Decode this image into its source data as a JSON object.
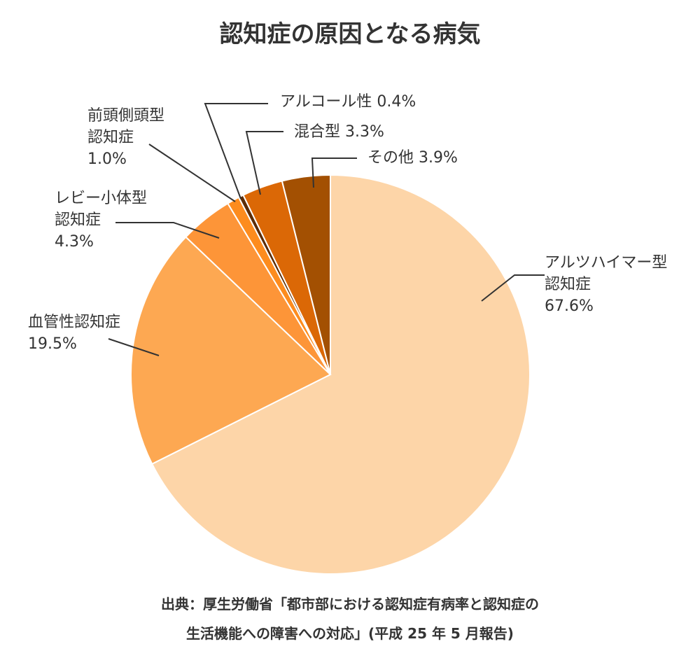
{
  "chart_data": {
    "type": "pie",
    "title": "認知症の原因となる病気",
    "slices": [
      {
        "key": "alz",
        "label_lines": [
          "アルツハイマー型",
          "認知症",
          "67.6%"
        ],
        "value": 67.6,
        "color": "#fdd5a8"
      },
      {
        "key": "vasc",
        "label_lines": [
          "血管性認知症",
          "19.5%"
        ],
        "value": 19.5,
        "color": "#fda852"
      },
      {
        "key": "lewy",
        "label_lines": [
          "レビー小体型",
          "認知症",
          "4.3%"
        ],
        "value": 4.3,
        "color": "#fd9538"
      },
      {
        "key": "ftd",
        "label_lines": [
          "前頭側頭型",
          "認知症",
          "1.0%"
        ],
        "value": 1.0,
        "color": "#fd8c1e"
      },
      {
        "key": "alc",
        "label_lines": [
          "アルコール性 0.4%"
        ],
        "value": 0.4,
        "color": "#5c2c06"
      },
      {
        "key": "mixed",
        "label_lines": [
          "混合型 3.3%"
        ],
        "value": 3.3,
        "color": "#db6806"
      },
      {
        "key": "other",
        "label_lines": [
          "その他 3.9%"
        ],
        "value": 3.9,
        "color": "#a35002"
      }
    ],
    "source_lines": [
      "出典：厚生労働省「都市部における認知症有病率と認知症の",
      "生活機能への障害への対応」(平成 25 年 5 月報告)"
    ]
  }
}
